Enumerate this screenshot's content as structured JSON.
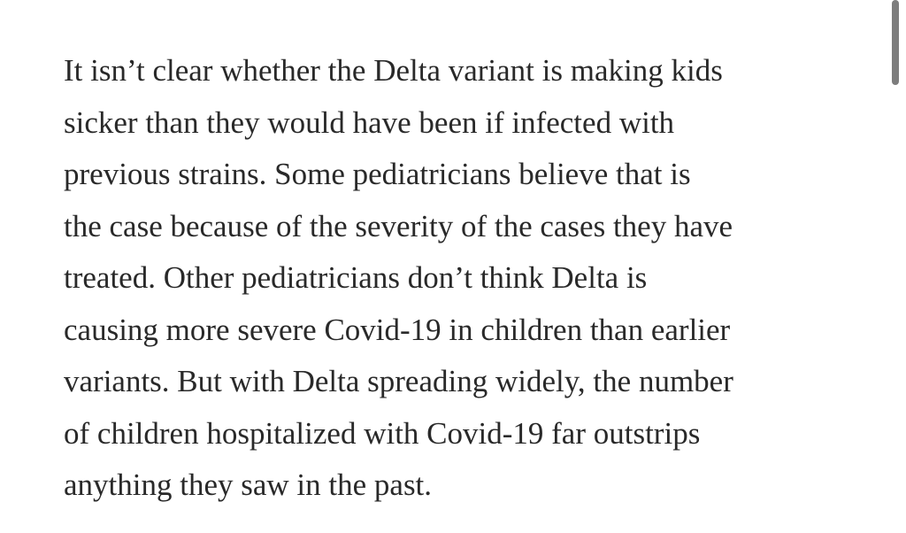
{
  "paragraph": {
    "lines": [
      "It isn’t clear whether the Delta variant is making kids",
      "sicker than they would have been if infected with",
      "previous strains. Some pediatricians believe that is",
      "the case because of the severity of the cases they have",
      "treated. Other pediatricians don’t think Delta is",
      "causing more severe Covid-19 in children than earlier",
      "variants. But with Delta spreading widely, the number",
      "of children hospitalized with Covid-19 far outstrips",
      "anything they saw in the past."
    ]
  }
}
